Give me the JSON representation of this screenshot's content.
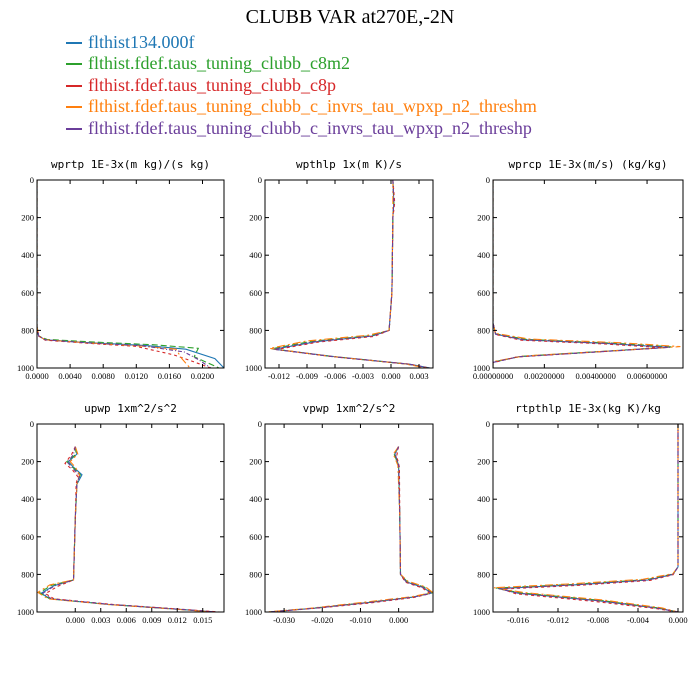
{
  "title": "CLUBB VAR at270E,-2N",
  "legend": [
    {
      "name": "flthist134.000f",
      "color": "#1f77b4"
    },
    {
      "name": "flthist.fdef.taus_tuning_clubb_c8m2",
      "color": "#2ca02c"
    },
    {
      "name": "flthist.fdef.taus_tuning_clubb_c8p",
      "color": "#d62728"
    },
    {
      "name": "flthist.fdef.taus_tuning_clubb_c_invrs_tau_wpxp_n2_threshm",
      "color": "#ff7f0e"
    },
    {
      "name": "flthist.fdef.taus_tuning_clubb_c_invrs_tau_wpxp_n2_threshp",
      "color": "#6a3d9a"
    }
  ],
  "chart_data": [
    {
      "type": "line",
      "title": "wprtp  1E-3x(m kg)/(s kg)",
      "xlim": [
        0.0,
        0.0226
      ],
      "ylim": [
        1000,
        0
      ],
      "xticks": [
        "0.0000",
        "0.0040",
        "0.0080",
        "0.0120",
        "0.0160",
        "0.0200"
      ],
      "xtick_values": [
        0,
        0.004,
        0.008,
        0.012,
        0.016,
        0.02
      ],
      "yticks": [
        "0",
        "200",
        "400",
        "600",
        "800",
        "1000"
      ],
      "ytick_values": [
        0,
        200,
        400,
        600,
        800,
        1000
      ],
      "series": [
        {
          "x": [
            0,
            0,
            0.0002,
            0.001,
            0.006,
            0.013,
            0.018,
            0.0215,
            0.0226
          ],
          "y": [
            0,
            780,
            830,
            850,
            865,
            880,
            900,
            950,
            1000
          ]
        },
        {
          "x": [
            0,
            0,
            0.0002,
            0.0012,
            0.007,
            0.014,
            0.0195,
            0.019,
            0.022
          ],
          "y": [
            0,
            780,
            830,
            848,
            862,
            876,
            895,
            940,
            1000
          ]
        },
        {
          "x": [
            0,
            0,
            0.0002,
            0.001,
            0.006,
            0.012,
            0.0165,
            0.0185,
            0.021
          ],
          "y": [
            0,
            780,
            830,
            852,
            868,
            885,
            930,
            960,
            1000
          ]
        },
        {
          "x": [
            0,
            0,
            0.0002,
            0.001,
            0.006,
            0.0125,
            0.0168,
            0.0175,
            0.0185
          ],
          "y": [
            0,
            780,
            830,
            850,
            866,
            883,
            900,
            950,
            1000
          ]
        },
        {
          "x": [
            0,
            0,
            0.0002,
            0.001,
            0.006,
            0.0128,
            0.0178,
            0.0195,
            0.021
          ],
          "y": [
            0,
            780,
            830,
            850,
            866,
            882,
            915,
            955,
            1000
          ]
        }
      ]
    },
    {
      "type": "line",
      "title": "wpthlp  1x(m K)/s",
      "xlim": [
        -0.0135,
        0.0045
      ],
      "ylim": [
        1000,
        0
      ],
      "xticks": [
        "-0.012",
        "-0.009",
        "-0.006",
        "-0.003",
        "0.000",
        "0.003"
      ],
      "xtick_values": [
        -0.012,
        -0.009,
        -0.006,
        -0.003,
        0,
        0.003
      ],
      "yticks": [
        "0",
        "200",
        "400",
        "600",
        "800",
        "1000"
      ],
      "ytick_values": [
        0,
        200,
        400,
        600,
        800,
        1000
      ],
      "series": [
        {
          "x": [
            0.0002,
            0.0003,
            0.0002,
            0.0001,
            -0.0002,
            -0.002,
            -0.008,
            -0.0125,
            -0.006,
            0.002,
            0.0042
          ],
          "y": [
            0,
            120,
            200,
            600,
            800,
            830,
            860,
            900,
            940,
            980,
            1000
          ]
        },
        {
          "x": [
            0.0002,
            0.0003,
            0.0002,
            0.0001,
            -0.0002,
            -0.0022,
            -0.0085,
            -0.0128,
            -0.0065,
            0.0018,
            0.004
          ],
          "y": [
            0,
            120,
            200,
            600,
            800,
            828,
            858,
            898,
            938,
            980,
            1000
          ]
        },
        {
          "x": [
            0.0002,
            0.0004,
            0.0002,
            0.0001,
            -0.0002,
            -0.0018,
            -0.0078,
            -0.0123,
            -0.0058,
            0.002,
            0.0041
          ],
          "y": [
            0,
            120,
            200,
            600,
            800,
            832,
            862,
            902,
            942,
            980,
            1000
          ]
        },
        {
          "x": [
            0.0002,
            0.0002,
            0.0002,
            0.0001,
            -0.0002,
            -0.0025,
            -0.009,
            -0.013,
            -0.0068,
            0.0015,
            0.0038
          ],
          "y": [
            0,
            120,
            200,
            600,
            800,
            826,
            856,
            896,
            936,
            978,
            1000
          ]
        },
        {
          "x": [
            0.0002,
            0.0003,
            0.0002,
            0.0001,
            -0.0002,
            -0.002,
            -0.0082,
            -0.0126,
            -0.0062,
            0.0019,
            0.0041
          ],
          "y": [
            0,
            120,
            200,
            600,
            800,
            830,
            860,
            900,
            940,
            980,
            1000
          ]
        }
      ]
    },
    {
      "type": "line",
      "title": "wprcp  1E-3x(m/s) (kg/kg)",
      "xlim": [
        0.0,
        0.0074
      ],
      "ylim": [
        1000,
        0
      ],
      "xticks": [
        "0.00000000",
        "0.00200000",
        "0.00400000",
        "0.00600000"
      ],
      "xtick_values": [
        0,
        0.002,
        0.004,
        0.006
      ],
      "yticks": [
        "0",
        "200",
        "400",
        "600",
        "800",
        "1000"
      ],
      "ytick_values": [
        0,
        200,
        400,
        600,
        800,
        1000
      ],
      "series": [
        {
          "x": [
            0,
            0,
            0.0001,
            0.0012,
            0.0045,
            0.0068,
            0.0045,
            0.001,
            0,
            0
          ],
          "y": [
            0,
            760,
            820,
            850,
            870,
            890,
            910,
            940,
            970,
            1000
          ]
        },
        {
          "x": [
            0,
            0,
            0.0001,
            0.0013,
            0.0047,
            0.007,
            0.0047,
            0.0011,
            0,
            0
          ],
          "y": [
            0,
            760,
            818,
            848,
            868,
            888,
            908,
            938,
            968,
            1000
          ]
        },
        {
          "x": [
            0,
            0,
            0.0001,
            0.0011,
            0.0043,
            0.0066,
            0.0043,
            0.0009,
            0,
            0
          ],
          "y": [
            0,
            760,
            822,
            852,
            872,
            892,
            912,
            942,
            972,
            1000
          ]
        },
        {
          "x": [
            0,
            0,
            0.0001,
            0.0014,
            0.005,
            0.0073,
            0.005,
            0.0012,
            0,
            0
          ],
          "y": [
            0,
            760,
            816,
            846,
            866,
            886,
            906,
            936,
            966,
            1000
          ]
        },
        {
          "x": [
            0,
            0,
            0.0001,
            0.0012,
            0.0046,
            0.0069,
            0.0046,
            0.001,
            0,
            0
          ],
          "y": [
            0,
            760,
            820,
            850,
            870,
            890,
            910,
            940,
            970,
            1000
          ]
        }
      ]
    },
    {
      "type": "line",
      "title": "upwp  1xm^2/s^2",
      "xlim": [
        -0.0045,
        0.0175
      ],
      "ylim": [
        1000,
        0
      ],
      "xticks": [
        "0.000",
        "0.003",
        "0.006",
        "0.009",
        "0.012",
        "0.015"
      ],
      "xtick_values": [
        0,
        0.003,
        0.006,
        0.009,
        0.012,
        0.015
      ],
      "yticks": [
        "0",
        "200",
        "400",
        "600",
        "800",
        "1000"
      ],
      "ytick_values": [
        0,
        200,
        400,
        600,
        800,
        1000
      ],
      "series": [
        {
          "x": [
            0,
            0.0002,
            -0.0008,
            -0.0002,
            0.0008,
            0.0002,
            0,
            -0.0002,
            -0.0025,
            -0.004,
            -0.003,
            0.004,
            0.012,
            0.0165
          ],
          "y": [
            120,
            160,
            200,
            230,
            270,
            320,
            500,
            830,
            860,
            900,
            930,
            960,
            985,
            1000
          ]
        },
        {
          "x": [
            0,
            0.0001,
            -0.001,
            -0.0003,
            0.0006,
            0.0002,
            0,
            -0.0002,
            -0.0028,
            -0.0042,
            -0.003,
            0.004,
            0.012,
            0.0165
          ],
          "y": [
            120,
            160,
            200,
            230,
            270,
            320,
            500,
            830,
            858,
            898,
            930,
            960,
            985,
            1000
          ]
        },
        {
          "x": [
            0,
            -0.0004,
            -0.0012,
            -0.0004,
            0.0003,
            0.0001,
            0,
            -0.0002,
            -0.002,
            -0.0035,
            -0.0025,
            0.0045,
            0.0125,
            0.017
          ],
          "y": [
            120,
            160,
            210,
            240,
            280,
            320,
            500,
            830,
            862,
            902,
            930,
            960,
            985,
            1000
          ]
        },
        {
          "x": [
            0,
            0.0003,
            -0.0006,
            0,
            0.0005,
            0.0002,
            0,
            -0.0002,
            -0.003,
            -0.0044,
            -0.0032,
            0.0038,
            0.0118,
            0.0162
          ],
          "y": [
            120,
            160,
            200,
            230,
            270,
            320,
            500,
            830,
            856,
            896,
            930,
            960,
            985,
            1000
          ]
        },
        {
          "x": [
            0,
            -0.0002,
            -0.0009,
            -0.0003,
            0.0005,
            0.0002,
            0,
            -0.0002,
            -0.0024,
            -0.0038,
            -0.0028,
            0.0042,
            0.0122,
            0.0167
          ],
          "y": [
            120,
            160,
            205,
            235,
            275,
            320,
            500,
            830,
            860,
            900,
            930,
            960,
            985,
            1000
          ]
        }
      ]
    },
    {
      "type": "line",
      "title": "vpwp  1xm^2/s^2",
      "xlim": [
        -0.035,
        0.009
      ],
      "ylim": [
        1000,
        0
      ],
      "xticks": [
        "-0.030",
        "-0.020",
        "-0.010",
        "0.000"
      ],
      "xtick_values": [
        -0.03,
        -0.02,
        -0.01,
        0
      ],
      "yticks": [
        "0",
        "200",
        "400",
        "600",
        "800",
        "1000"
      ],
      "ytick_values": [
        0,
        200,
        400,
        600,
        800,
        1000
      ],
      "series": [
        {
          "x": [
            0,
            -0.001,
            0,
            0.0003,
            0.0005,
            0.002,
            0.0065,
            0.0085,
            0.004,
            -0.008,
            -0.022,
            -0.034
          ],
          "y": [
            120,
            160,
            220,
            500,
            800,
            840,
            870,
            900,
            920,
            950,
            980,
            1000
          ]
        },
        {
          "x": [
            0,
            -0.0012,
            0,
            0.0003,
            0.0005,
            0.0022,
            0.0068,
            0.0087,
            0.0038,
            -0.0085,
            -0.0225,
            -0.034
          ],
          "y": [
            120,
            160,
            220,
            500,
            800,
            838,
            868,
            898,
            920,
            950,
            980,
            1000
          ]
        },
        {
          "x": [
            0,
            -0.0005,
            0.0002,
            0.0003,
            0.0005,
            0.0018,
            0.0062,
            0.0083,
            0.0042,
            -0.0075,
            -0.0215,
            -0.0335
          ],
          "y": [
            120,
            170,
            230,
            500,
            800,
            842,
            872,
            902,
            922,
            952,
            980,
            1000
          ]
        },
        {
          "x": [
            0,
            -0.0014,
            -0.0002,
            0.0003,
            0.0005,
            0.0024,
            0.007,
            0.0089,
            0.0036,
            -0.009,
            -0.023,
            -0.0345
          ],
          "y": [
            120,
            160,
            220,
            500,
            800,
            836,
            866,
            896,
            918,
            948,
            980,
            1000
          ]
        },
        {
          "x": [
            0,
            -0.0009,
            0,
            0.0003,
            0.0005,
            0.002,
            0.0066,
            0.0086,
            0.004,
            -0.008,
            -0.022,
            -0.034
          ],
          "y": [
            120,
            160,
            220,
            500,
            800,
            840,
            870,
            900,
            920,
            950,
            980,
            1000
          ]
        }
      ]
    },
    {
      "type": "line",
      "title": "rtpthlp  1E-3x(kg K)/kg",
      "xlim": [
        -0.0185,
        0.0005
      ],
      "ylim": [
        1000,
        0
      ],
      "xticks": [
        "-0.016",
        "-0.012",
        "-0.008",
        "-0.004",
        "0.000"
      ],
      "xtick_values": [
        -0.016,
        -0.012,
        -0.008,
        -0.004,
        0
      ],
      "yticks": [
        "0",
        "200",
        "400",
        "600",
        "800",
        "1000"
      ],
      "ytick_values": [
        0,
        200,
        400,
        600,
        800,
        1000
      ],
      "series": [
        {
          "x": [
            0,
            0,
            -0.0005,
            -0.003,
            -0.01,
            -0.018,
            -0.016,
            -0.008,
            -0.002,
            0
          ],
          "y": [
            0,
            760,
            800,
            830,
            855,
            875,
            900,
            940,
            980,
            1000
          ]
        },
        {
          "x": [
            0,
            0,
            -0.0005,
            -0.0032,
            -0.0105,
            -0.0182,
            -0.0158,
            -0.0078,
            -0.0018,
            0
          ],
          "y": [
            0,
            760,
            798,
            828,
            853,
            873,
            898,
            938,
            980,
            1000
          ]
        },
        {
          "x": [
            0,
            0,
            -0.0005,
            -0.0028,
            -0.0095,
            -0.0176,
            -0.0162,
            -0.0085,
            -0.0022,
            0
          ],
          "y": [
            0,
            760,
            802,
            832,
            857,
            878,
            903,
            943,
            982,
            1000
          ]
        },
        {
          "x": [
            0,
            0,
            -0.0005,
            -0.0035,
            -0.011,
            -0.0184,
            -0.0155,
            -0.0075,
            -0.0016,
            0
          ],
          "y": [
            0,
            760,
            796,
            826,
            851,
            871,
            896,
            936,
            978,
            1000
          ]
        },
        {
          "x": [
            0,
            0,
            -0.0005,
            -0.003,
            -0.01,
            -0.0179,
            -0.016,
            -0.008,
            -0.002,
            0
          ],
          "y": [
            0,
            760,
            800,
            830,
            855,
            876,
            900,
            940,
            980,
            1000
          ]
        }
      ]
    }
  ]
}
